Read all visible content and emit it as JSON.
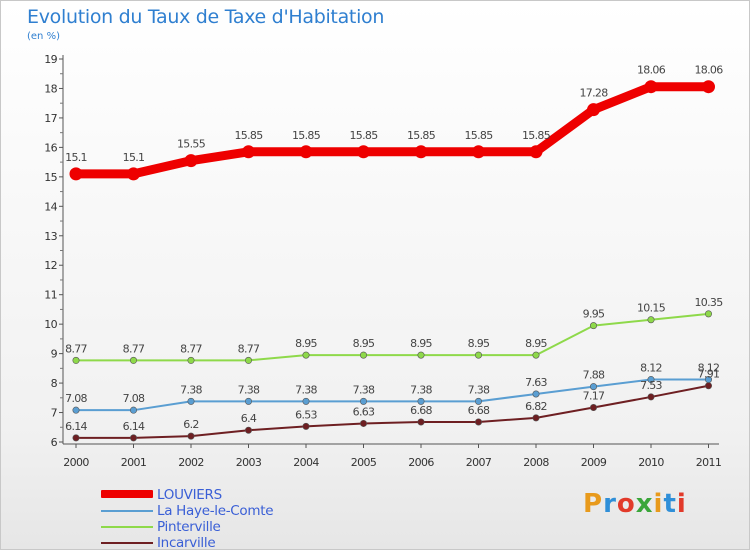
{
  "header": {
    "title": "Evolution du Taux de Taxe d'Habitation",
    "subtitle": "(en %)"
  },
  "logo": {
    "text": "Proxiti",
    "colors": [
      "#e89a1c",
      "#2f8fd8",
      "#e23a2a",
      "#3aa63a",
      "#e89a1c",
      "#2f8fd8",
      "#e23a2a"
    ]
  },
  "chart_data": {
    "type": "line",
    "x": [
      "2000",
      "2001",
      "2002",
      "2003",
      "2004",
      "2005",
      "2006",
      "2007",
      "2008",
      "2009",
      "2010",
      "2011"
    ],
    "ylim": [
      6,
      19
    ],
    "yticks": [
      6,
      7,
      8,
      9,
      10,
      11,
      12,
      13,
      14,
      15,
      16,
      17,
      18,
      19
    ],
    "grid": false,
    "legend_position": "bottom-left",
    "series": [
      {
        "name": "LOUVIERS",
        "color": "#ee0000",
        "values": [
          15.1,
          15.1,
          15.55,
          15.85,
          15.85,
          15.85,
          15.85,
          15.85,
          15.85,
          17.28,
          18.06,
          18.06
        ],
        "labels": [
          "15.1",
          "15.1",
          "15.55",
          "15.85",
          "15.85",
          "15.85",
          "15.85",
          "15.85",
          "15.85",
          "17.28",
          "18.06",
          "18.06"
        ]
      },
      {
        "name": "La Haye-le-Comte",
        "color": "#5a9ed2",
        "values": [
          7.08,
          7.08,
          7.38,
          7.38,
          7.38,
          7.38,
          7.38,
          7.38,
          7.63,
          7.88,
          8.12,
          8.12
        ],
        "labels": [
          "7.08",
          "7.08",
          "7.38",
          "7.38",
          "7.38",
          "7.38",
          "7.38",
          "7.38",
          "7.63",
          "7.88",
          "8.12",
          "8.12"
        ]
      },
      {
        "name": "Pinterville",
        "color": "#8ed94a",
        "values": [
          8.77,
          8.77,
          8.77,
          8.77,
          8.95,
          8.95,
          8.95,
          8.95,
          8.95,
          9.95,
          10.15,
          10.35
        ],
        "labels": [
          "8.77",
          "8.77",
          "8.77",
          "8.77",
          "8.95",
          "8.95",
          "8.95",
          "8.95",
          "8.95",
          "9.95",
          "10.15",
          "10.35"
        ]
      },
      {
        "name": "Incarville",
        "color": "#6e1f22",
        "values": [
          6.14,
          6.14,
          6.2,
          6.4,
          6.53,
          6.63,
          6.68,
          6.68,
          6.82,
          7.17,
          7.53,
          7.91
        ],
        "labels": [
          "6.14",
          "6.14",
          "6.2",
          "6.4",
          "6.53",
          "6.63",
          "6.68",
          "6.68",
          "6.82",
          "7.17",
          "7.53",
          "7.91"
        ]
      }
    ]
  }
}
